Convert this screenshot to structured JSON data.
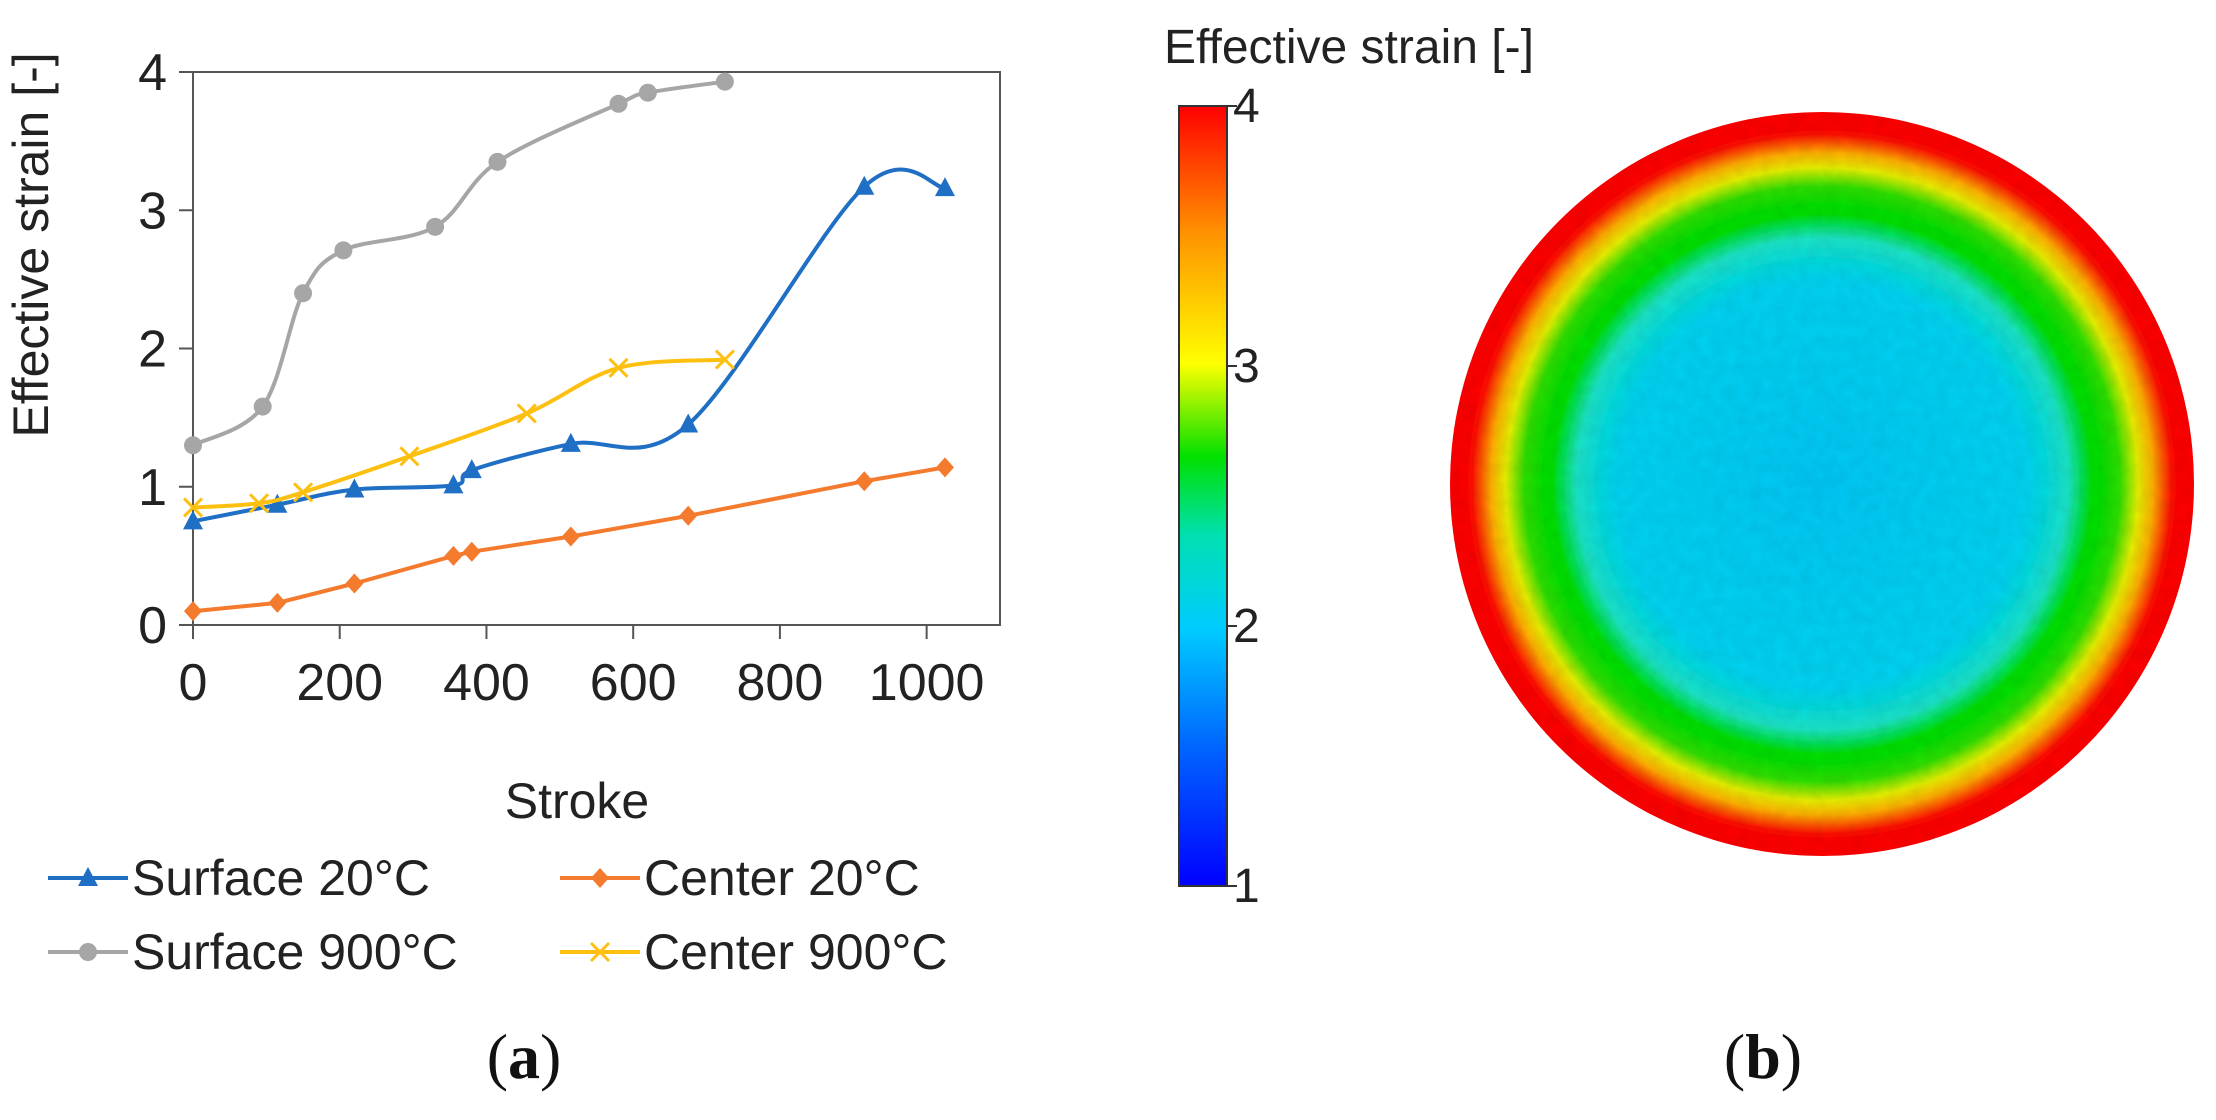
{
  "chart_data": [
    {
      "type": "line",
      "title": "",
      "xlabel": "Stroke",
      "ylabel": "Effective strain [-]",
      "xlim": [
        0,
        1100
      ],
      "ylim": [
        0,
        4
      ],
      "xticks": [
        "0",
        "200",
        "400",
        "600",
        "800",
        "1000"
      ],
      "yticks": [
        "0",
        "1",
        "2",
        "3",
        "4"
      ],
      "grid": false,
      "legend_position": "bottom",
      "series": [
        {
          "name": "Surface 20°C",
          "color": "#1f6fc5",
          "marker": "triangle",
          "x": [
            0,
            115,
            220,
            355,
            380,
            515,
            675,
            915,
            1025
          ],
          "y": [
            0.75,
            0.87,
            0.98,
            1.01,
            1.12,
            1.31,
            1.45,
            3.17,
            3.16
          ]
        },
        {
          "name": "Center 20°C",
          "color": "#f47a2e",
          "marker": "diamond",
          "x": [
            0,
            115,
            220,
            355,
            380,
            515,
            675,
            915,
            1025
          ],
          "y": [
            0.1,
            0.16,
            0.3,
            0.5,
            0.53,
            0.64,
            0.79,
            1.04,
            1.14
          ],
          "smooth": false
        },
        {
          "name": "Surface 900°C",
          "color": "#a6a6a6",
          "marker": "circle",
          "x": [
            0,
            95,
            150,
            205,
            330,
            415,
            580,
            620,
            725
          ],
          "y": [
            1.3,
            1.58,
            2.4,
            2.71,
            2.88,
            3.35,
            3.77,
            3.85,
            3.93
          ]
        },
        {
          "name": "Center 900°C",
          "color": "#fdc010",
          "marker": "x",
          "x": [
            0,
            90,
            150,
            295,
            455,
            580,
            725
          ],
          "y": [
            0.85,
            0.88,
            0.96,
            1.22,
            1.53,
            1.86,
            1.92
          ]
        }
      ],
      "panel_label": {
        "open": "(",
        "letter": "a",
        "close": ")"
      }
    },
    {
      "type": "heatmap",
      "title": "Effective strain [-]",
      "description_shape": "circular cross-section",
      "colorbar_range": [
        1,
        4
      ],
      "colorbar_ticks": [
        "4",
        "3",
        "2",
        "1"
      ],
      "colormap": [
        "#0000ff",
        "#00a0ff",
        "#00e5ff",
        "#00e000",
        "#ffff00",
        "#ff8000",
        "#ff0000"
      ],
      "panel_label": {
        "open": "(",
        "letter": "b",
        "close": ")"
      }
    }
  ]
}
